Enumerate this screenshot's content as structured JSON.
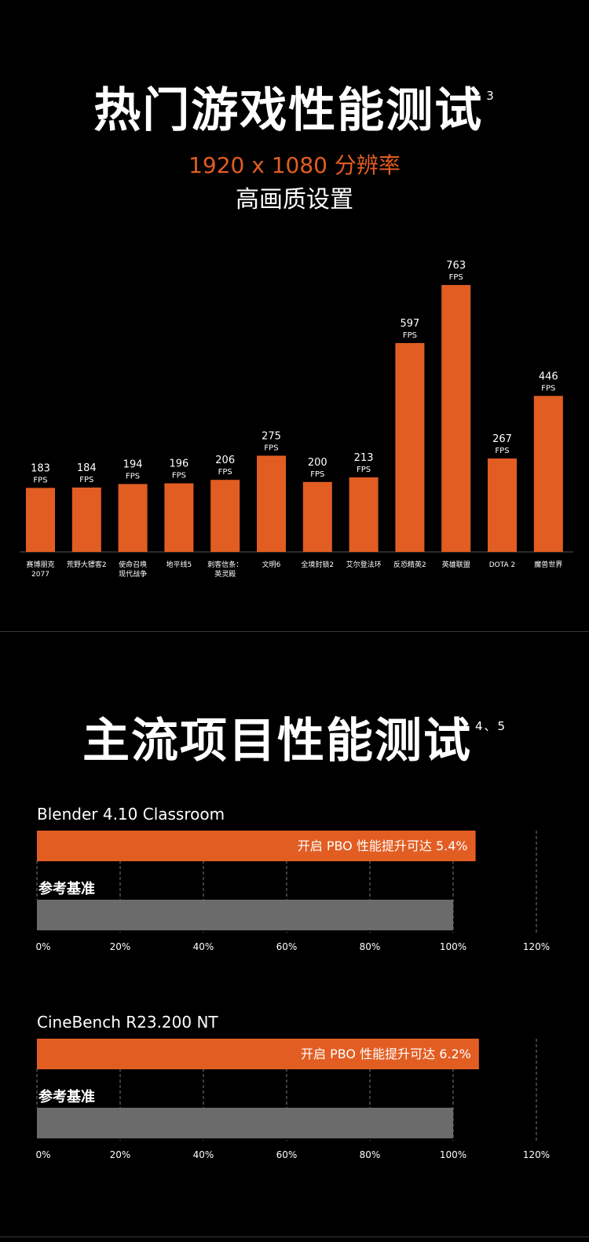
{
  "section1": {
    "title": "热门游戏性能测试",
    "title_sup": "3",
    "subtitle_resolution": "1920 x 1080 分辨率",
    "subtitle_quality": "高画质设置"
  },
  "section2": {
    "title": "主流项目性能测试",
    "title_sup": "4、5"
  },
  "colors": {
    "accent": "#e25d22",
    "baseline": "#6b6b6b",
    "background": "#000000"
  },
  "chart_data": [
    {
      "type": "bar",
      "unit_label": "FPS",
      "categories": [
        [
          "赛博朋克",
          "2077"
        ],
        [
          "荒野大镖客2"
        ],
        [
          "使命召唤",
          "现代战争"
        ],
        [
          "地平线5"
        ],
        [
          "刺客信条：",
          "英灵殿"
        ],
        [
          "文明6"
        ],
        [
          "全境封锁2"
        ],
        [
          "艾尔登法环"
        ],
        [
          "反恐精英2"
        ],
        [
          "英雄联盟"
        ],
        [
          "DOTA 2"
        ],
        [
          "魔兽世界"
        ]
      ],
      "values": [
        183,
        184,
        194,
        196,
        206,
        275,
        200,
        213,
        597,
        763,
        267,
        446
      ]
    },
    {
      "type": "bar",
      "title": "Blender 4.10  Classroom",
      "series": [
        {
          "name": "开启 PBO 性能提升可达 5.4%",
          "values": [
            105.4
          ]
        },
        {
          "name": "参考基准",
          "values": [
            100
          ]
        }
      ],
      "xticks": [
        "0%",
        "20%",
        "40%",
        "60%",
        "80%",
        "100%",
        "120%"
      ],
      "xlim": [
        0,
        120
      ]
    },
    {
      "type": "bar",
      "title": "CineBench R23.200  NT",
      "series": [
        {
          "name": "开启 PBO 性能提升可达 6.2%",
          "values": [
            106.2
          ]
        },
        {
          "name": "参考基准",
          "values": [
            100
          ]
        }
      ],
      "xticks": [
        "0%",
        "20%",
        "40%",
        "60%",
        "80%",
        "100%",
        "120%"
      ],
      "xlim": [
        0,
        120
      ]
    }
  ]
}
